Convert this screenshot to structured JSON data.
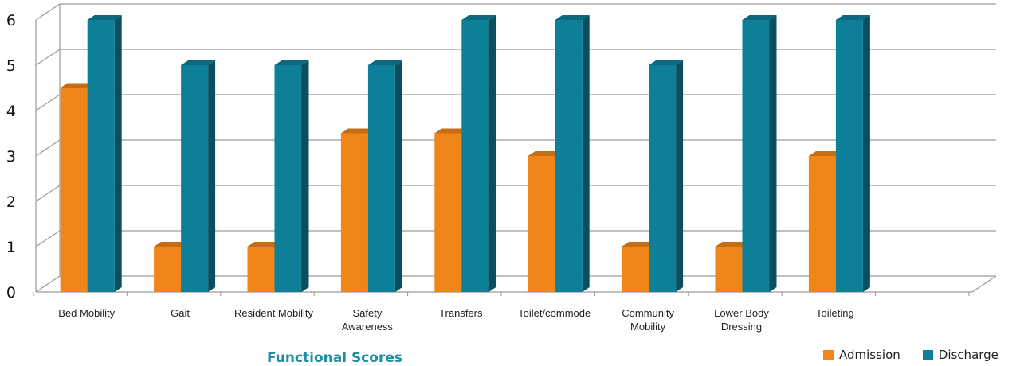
{
  "chart_data": {
    "type": "bar",
    "title": "Functional Scores",
    "categories": [
      [
        "Bed Mobility"
      ],
      [
        "Gait"
      ],
      [
        "Resident Mobility"
      ],
      [
        "Safety",
        "Awareness"
      ],
      [
        "Transfers"
      ],
      [
        "Toilet/commode"
      ],
      [
        "Community",
        "Mobility"
      ],
      [
        "Lower Body",
        "Dressing"
      ],
      [
        "Toileting"
      ]
    ],
    "series": [
      {
        "name": "Admission",
        "color": "#f0851a",
        "values": [
          4.5,
          1,
          1,
          3.5,
          3.5,
          3,
          1,
          1,
          3
        ]
      },
      {
        "name": "Discharge",
        "color": "#0e7f99",
        "values": [
          6,
          5,
          5,
          5,
          6,
          6,
          5,
          6,
          6
        ]
      }
    ],
    "ylim": [
      0,
      6
    ],
    "yticks": [
      "0",
      "1",
      "2",
      "3",
      "4",
      "5",
      "6"
    ],
    "grid": true,
    "legend_position": "bottom-right"
  }
}
